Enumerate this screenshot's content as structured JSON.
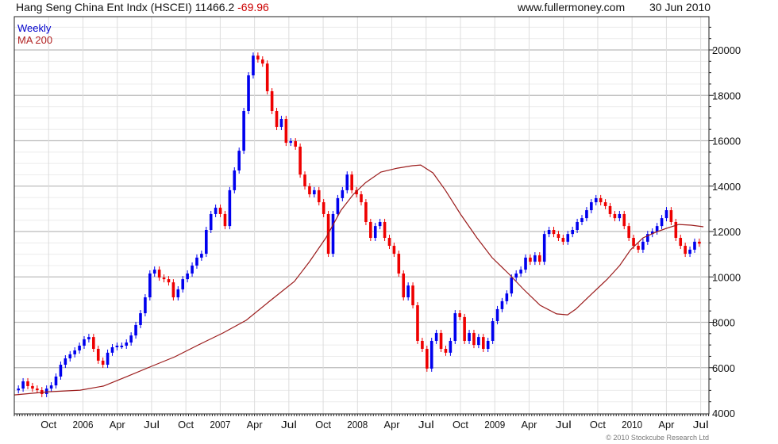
{
  "header": {
    "title": "Hang Seng China Ent Indx (HSCEI)",
    "last": "11466.2",
    "change": "-69.96",
    "site": "www.fullermoney.com",
    "date": "30 Jun 2010"
  },
  "legend": {
    "series": "Weekly",
    "ma": "MA 200"
  },
  "copyright": "© 2010 Stockcube Research Ltd",
  "colors": {
    "up": "#0000ee",
    "down": "#ee0000",
    "ma": "#9b1c1c",
    "grid": "#dddddd",
    "change": "#cc0000"
  },
  "chart_data": {
    "type": "candlestick",
    "title": "Hang Seng China Ent Indx (HSCEI)",
    "x_range": [
      2005.5,
      2010.56
    ],
    "ylim": [
      4000,
      21000
    ],
    "yticks": [
      4000,
      6000,
      8000,
      10000,
      12000,
      14000,
      16000,
      18000,
      20000
    ],
    "xticks": [
      {
        "label": "Oct",
        "t": 2005.75
      },
      {
        "label": "2006",
        "t": 2006.0
      },
      {
        "label": "Apr",
        "t": 2006.25
      },
      {
        "label": "Jul",
        "t": 2006.5
      },
      {
        "label": "Oct",
        "t": 2006.75
      },
      {
        "label": "2007",
        "t": 2007.0
      },
      {
        "label": "Apr",
        "t": 2007.25
      },
      {
        "label": "Jul",
        "t": 2007.5
      },
      {
        "label": "Oct",
        "t": 2007.75
      },
      {
        "label": "2008",
        "t": 2008.0
      },
      {
        "label": "Apr",
        "t": 2008.25
      },
      {
        "label": "Jul",
        "t": 2008.5
      },
      {
        "label": "Oct",
        "t": 2008.75
      },
      {
        "label": "2009",
        "t": 2009.0
      },
      {
        "label": "Apr",
        "t": 2009.25
      },
      {
        "label": "Jul",
        "t": 2009.5
      },
      {
        "label": "Oct",
        "t": 2009.75
      },
      {
        "label": "2010",
        "t": 2010.0
      },
      {
        "label": "Apr",
        "t": 2010.25
      },
      {
        "label": "Jul",
        "t": 2010.5
      }
    ],
    "grid": true,
    "price_series": {
      "name": "Weekly",
      "t_start": 2005.53,
      "t_end": 2010.49,
      "closes": [
        5080,
        5400,
        5190,
        5080,
        5010,
        4840,
        5080,
        5220,
        5610,
        6130,
        6410,
        6590,
        6760,
        6970,
        7250,
        7350,
        6830,
        6310,
        6130,
        6660,
        6900,
        6970,
        6970,
        7110,
        7420,
        7880,
        8400,
        9100,
        10150,
        10320,
        9970,
        9900,
        9760,
        9100,
        9450,
        9900,
        10150,
        10500,
        10850,
        11020,
        12070,
        12770,
        13050,
        12770,
        12240,
        13820,
        14690,
        15560,
        17310,
        18880,
        19750,
        19580,
        19400,
        18180,
        17310,
        16610,
        16960,
        15910,
        15980,
        15740,
        14510,
        13990,
        13640,
        13820,
        13290,
        12770,
        11020,
        12770,
        13470,
        13820,
        14510,
        13820,
        13640,
        13290,
        12420,
        11720,
        12240,
        12420,
        11720,
        11370,
        11020,
        10150,
        9100,
        9620,
        8750,
        7180,
        6830,
        5960,
        7180,
        7530,
        6830,
        6660,
        7180,
        8400,
        8230,
        7180,
        7530,
        7000,
        7350,
        6830,
        7180,
        8050,
        8580,
        8930,
        9270,
        9970,
        10150,
        10320,
        10850,
        10670,
        10950,
        10670,
        11890,
        12070,
        11890,
        11720,
        11550,
        11890,
        12070,
        12420,
        12590,
        12940,
        13290,
        13470,
        13290,
        13120,
        12770,
        12590,
        12770,
        12240,
        11720,
        11370,
        11200,
        11550,
        11890,
        12000,
        12240,
        12590,
        12940,
        12420,
        11720,
        11370,
        11020,
        11200,
        11550,
        11466
      ]
    },
    "ma_series": {
      "name": "MA 200",
      "points": [
        [
          2005.5,
          4800
        ],
        [
          2005.75,
          4940
        ],
        [
          2005.98,
          5010
        ],
        [
          2006.15,
          5190
        ],
        [
          2006.32,
          5610
        ],
        [
          2006.5,
          6060
        ],
        [
          2006.67,
          6480
        ],
        [
          2006.84,
          7000
        ],
        [
          2007.02,
          7530
        ],
        [
          2007.19,
          8090
        ],
        [
          2007.36,
          8930
        ],
        [
          2007.54,
          9800
        ],
        [
          2007.65,
          10670
        ],
        [
          2007.77,
          11720
        ],
        [
          2007.88,
          12940
        ],
        [
          2007.97,
          13640
        ],
        [
          2008.06,
          14160
        ],
        [
          2008.17,
          14620
        ],
        [
          2008.29,
          14790
        ],
        [
          2008.4,
          14900
        ],
        [
          2008.46,
          14930
        ],
        [
          2008.55,
          14580
        ],
        [
          2008.64,
          13820
        ],
        [
          2008.75,
          12770
        ],
        [
          2008.87,
          11720
        ],
        [
          2008.98,
          10850
        ],
        [
          2009.1,
          10150
        ],
        [
          2009.21,
          9450
        ],
        [
          2009.33,
          8750
        ],
        [
          2009.45,
          8370
        ],
        [
          2009.53,
          8330
        ],
        [
          2009.59,
          8580
        ],
        [
          2009.71,
          9270
        ],
        [
          2009.82,
          9900
        ],
        [
          2009.91,
          10500
        ],
        [
          2009.99,
          11200
        ],
        [
          2010.08,
          11720
        ],
        [
          2010.17,
          11960
        ],
        [
          2010.25,
          12140
        ],
        [
          2010.34,
          12310
        ],
        [
          2010.43,
          12280
        ],
        [
          2010.52,
          12210
        ]
      ]
    }
  }
}
